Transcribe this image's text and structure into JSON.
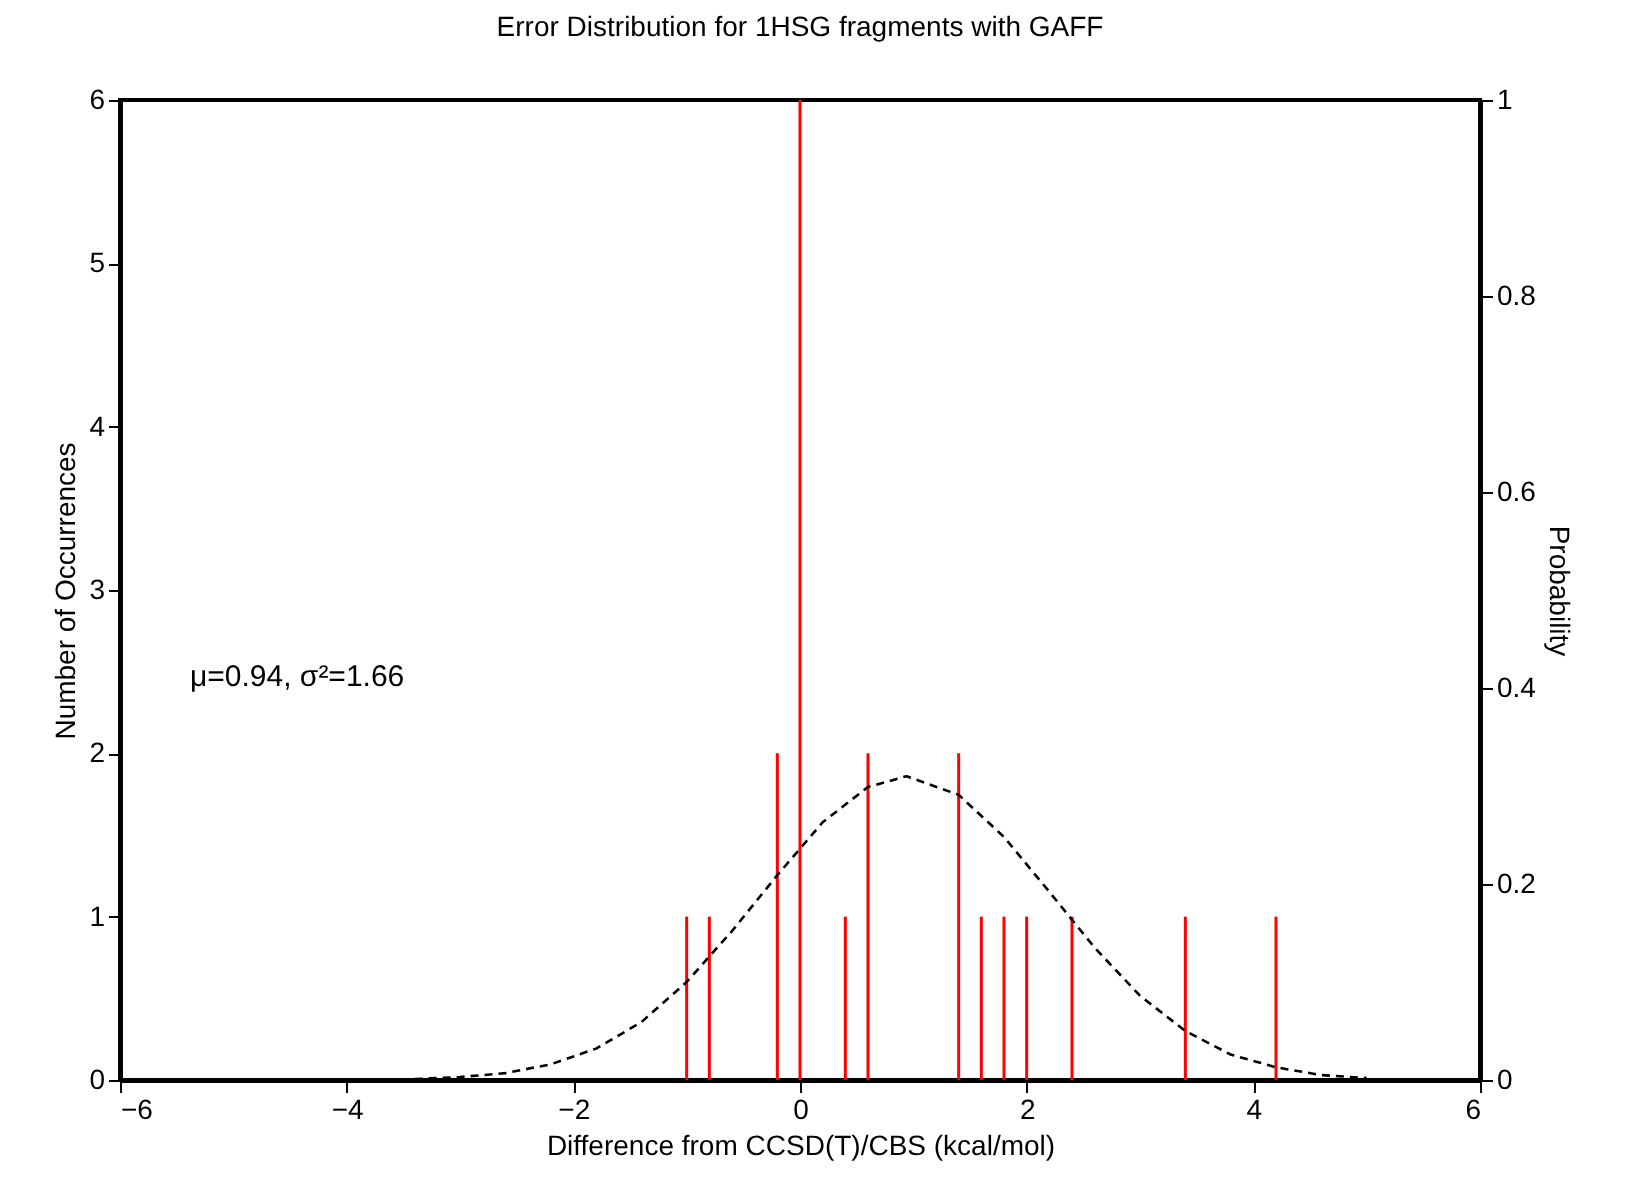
{
  "chart_data": {
    "type": "bar",
    "title": "Error Distribution for 1HSG fragments with GAFF",
    "xlabel": "Difference from CCSD(T)/CBS (kcal/mol)",
    "ylabel": "Number of Occurrences",
    "y2label": "Probability",
    "annotations": [
      "μ=0.94, σ²=1.66"
    ],
    "series": [
      {
        "color": "#ff0000",
        "x": [
          -1.0,
          -0.8,
          -0.2,
          0,
          0.4,
          0.6,
          1.4,
          1.6,
          1.8,
          2.0,
          2.4,
          3.4,
          4.2
        ],
        "values": [
          1,
          1,
          2,
          6,
          1,
          2,
          2,
          1,
          1,
          1,
          1,
          1,
          1
        ]
      },
      {
        "type": "line",
        "axis": "y2",
        "color": "#000000",
        "line_style": "dashed",
        "x": [
          -3.4,
          -3,
          -2.6,
          -2.2,
          -1.8,
          -1.4,
          -1,
          -0.6,
          -0.2,
          0.2,
          0.6,
          0.94,
          1.4,
          1.8,
          2.2,
          2.6,
          3,
          3.4,
          3.8,
          4.2,
          4.6,
          5
        ],
        "values": [
          0.001,
          0.003,
          0.007,
          0.016,
          0.032,
          0.059,
          0.1,
          0.152,
          0.209,
          0.263,
          0.299,
          0.31,
          0.291,
          0.248,
          0.192,
          0.135,
          0.086,
          0.05,
          0.026,
          0.013,
          0.005,
          0.002
        ]
      }
    ],
    "xlim": [
      -6,
      6
    ],
    "xticks": [
      -6,
      -4,
      -2,
      0,
      2,
      4,
      6
    ],
    "ylim": [
      0,
      6
    ],
    "yticks": [
      0,
      1,
      2,
      3,
      4,
      5,
      6
    ],
    "y2lim": [
      0,
      1
    ],
    "y2ticks": [
      0,
      0.2,
      0.4,
      0.6,
      0.8,
      1
    ],
    "grid": false
  }
}
